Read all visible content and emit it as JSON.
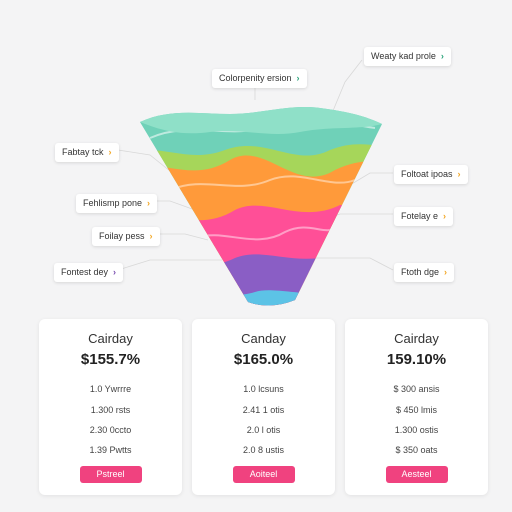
{
  "callouts": [
    {
      "id": "top-center",
      "label": "Colorpenity ersion",
      "color": "#2aa37a"
    },
    {
      "id": "top-right",
      "label": "Weaty kad prole",
      "color": "#2aa37a"
    },
    {
      "id": "left-1",
      "label": "Fabtay tck",
      "color": "#f2a623"
    },
    {
      "id": "left-2",
      "label": "Fehlismp pone",
      "color": "#f2a623"
    },
    {
      "id": "left-3",
      "label": "Foilay pess",
      "color": "#f2a623"
    },
    {
      "id": "left-4",
      "label": "Fontest dey",
      "color": "#7a4fb0"
    },
    {
      "id": "right-1",
      "label": "Foltoat ipoas",
      "color": "#f2a623"
    },
    {
      "id": "right-2",
      "label": "Fotelay e",
      "color": "#f2a623"
    },
    {
      "id": "right-3",
      "label": "Ftoth dge",
      "color": "#f2a623"
    }
  ],
  "funnel_colors": {
    "teal": "#6fd1b8",
    "green": "#a6d65a",
    "orange": "#ff9a3a",
    "pink": "#ff4f97",
    "purple": "#8a5ec5",
    "blue": "#5cc3e6"
  },
  "cards": [
    {
      "title": "Cairday",
      "value": "$155.7%",
      "rows": [
        "1.0 Ywrrre",
        "1.300 rsts",
        "2.30 0ccto",
        "1.39 Pwtts"
      ],
      "button": "Pstreel"
    },
    {
      "title": "Canday",
      "value": "$165.0%",
      "rows": [
        "1.0 lcsuns",
        "2.41 1 otis",
        "2.0 l otis",
        "2.0 8 ustis"
      ],
      "button": "Aoiteel"
    },
    {
      "title": "Cairday",
      "value": "159.10%",
      "rows": [
        "$ 300 ansis",
        "$ 450 lmis",
        "1.300 ostis",
        "$ 350 oats"
      ],
      "button": "Aesteel"
    }
  ],
  "accent": "#f0427f"
}
